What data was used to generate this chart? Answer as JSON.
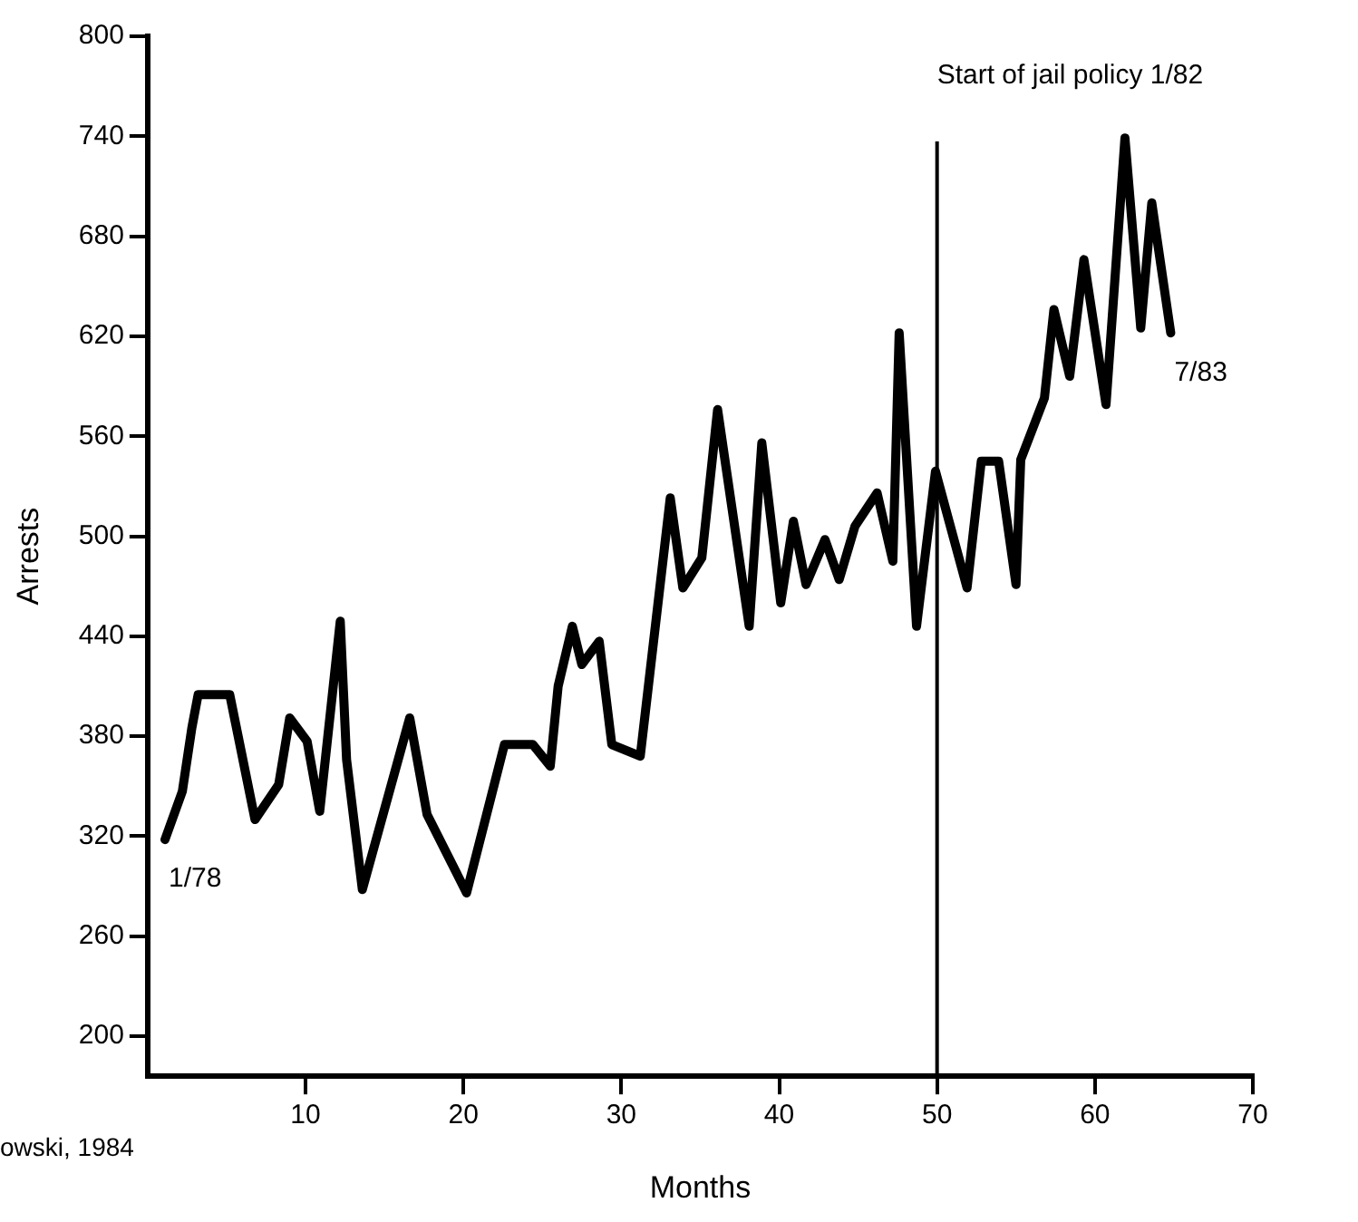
{
  "chart_data": {
    "type": "line",
    "xlabel": "Months",
    "ylabel": "Arrests",
    "x": [
      1.1,
      2.2,
      2.8,
      3.2,
      5.2,
      6.8,
      8.3,
      9.0,
      10.1,
      10.9,
      12.2,
      12.6,
      13.6,
      16.6,
      17.7,
      20.2,
      22.6,
      24.4,
      25.5,
      26.0,
      26.9,
      27.5,
      28.6,
      29.4,
      31.2,
      33.1,
      33.9,
      35.1,
      36.1,
      38.1,
      38.9,
      40.1,
      40.9,
      41.7,
      42.9,
      43.8,
      44.8,
      46.2,
      47.2,
      47.6,
      48.7,
      49.9,
      51.9,
      52.8,
      53.9,
      55.0,
      55.3,
      56.8,
      57.4,
      58.4,
      59.3,
      60.7,
      61.9,
      62.9,
      63.6,
      64.8
    ],
    "series": [
      {
        "color": "#000000",
        "values": [
          318,
          347,
          385,
          405,
          405,
          330,
          351,
          391,
          377,
          335,
          449,
          366,
          288,
          391,
          333,
          286,
          375,
          375,
          362,
          410,
          446,
          423,
          437,
          375,
          368,
          523,
          469,
          487,
          576,
          446,
          556,
          460,
          509,
          471,
          498,
          474,
          506,
          526,
          485,
          622,
          446,
          539,
          469,
          545,
          545,
          471,
          546,
          583,
          636,
          596,
          666,
          579,
          739,
          625,
          700,
          622
        ]
      }
    ],
    "xlim": [
      0,
      70
    ],
    "xticks": [
      10,
      20,
      30,
      40,
      50,
      60,
      70
    ],
    "ylim": [
      176,
      800
    ],
    "yticks": [
      200,
      260,
      320,
      380,
      440,
      500,
      560,
      620,
      680,
      740,
      800
    ],
    "grid": false,
    "legend": false,
    "marker": "none",
    "line_style": "solid",
    "ref_lines": [
      {
        "axis": "x",
        "value": 50,
        "label": "Start of jail policy 1/82",
        "color": "#000000"
      }
    ],
    "annotations": [
      {
        "text": "1/78",
        "x": 1.1,
        "y": 318
      },
      {
        "text": "7/83",
        "x": 64.8,
        "y": 622
      },
      "owski, 1984"
    ]
  }
}
